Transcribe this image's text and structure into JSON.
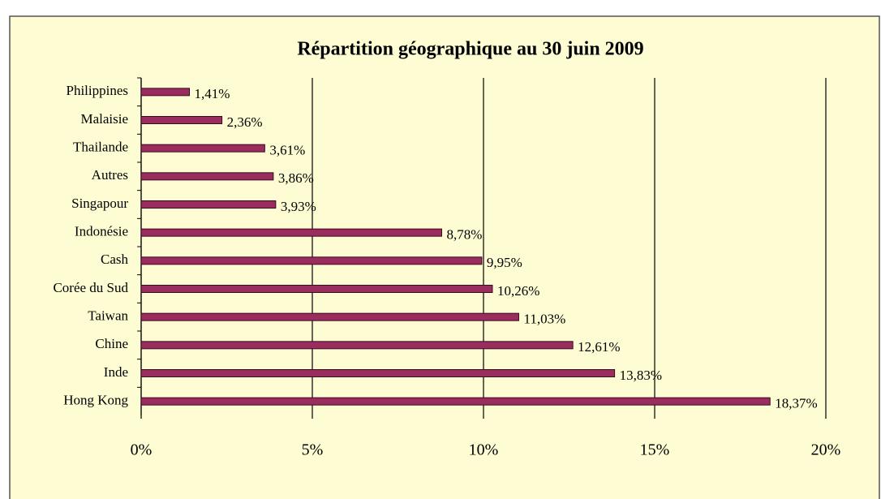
{
  "chart_data": {
    "type": "bar",
    "orientation": "horizontal",
    "title": "Répartition géographique au 30 juin 2009",
    "categories": [
      "Philippines",
      "Malaisie",
      "Thailande",
      "Autres",
      "Singapour",
      "Indonésie",
      "Cash",
      "Corée du Sud",
      "Taiwan",
      "Chine",
      "Inde",
      "Hong Kong"
    ],
    "values": [
      1.41,
      2.36,
      3.61,
      3.86,
      3.93,
      8.78,
      9.95,
      10.26,
      11.03,
      12.61,
      13.83,
      18.37
    ],
    "value_labels": [
      "1,41%",
      "2,36%",
      "3,61%",
      "3,86%",
      "3,93%",
      "8,78%",
      "9,95%",
      "10,26%",
      "11,03%",
      "12,61%",
      "13,83%",
      "18,37%"
    ],
    "color": "#9b2d5e",
    "xlim": [
      0,
      20
    ],
    "xticks": [
      {
        "value": 0,
        "label": "0%"
      },
      {
        "value": 5,
        "label": "5%"
      },
      {
        "value": 10,
        "label": "10%"
      },
      {
        "value": 15,
        "label": "15%"
      },
      {
        "value": 20,
        "label": "20%"
      }
    ],
    "grid": true
  }
}
